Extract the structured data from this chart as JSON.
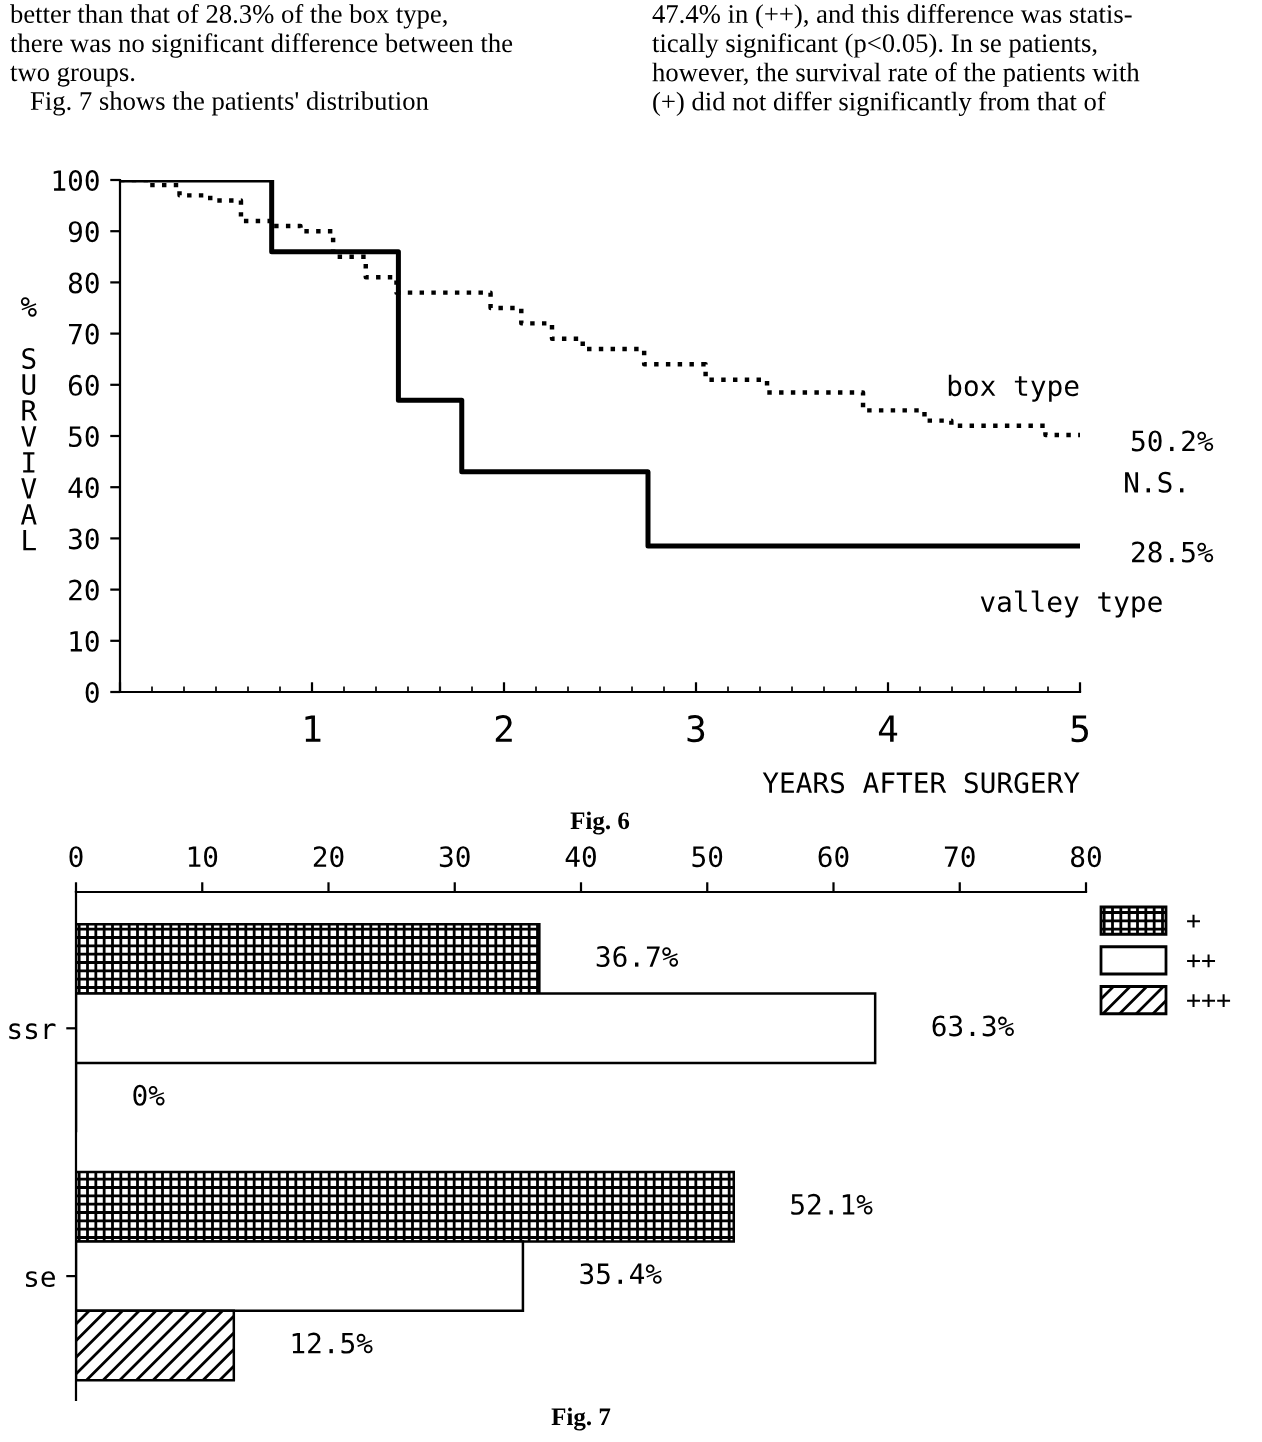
{
  "chart_data": [
    {
      "type": "step",
      "title": "Fig. 6",
      "xlabel": "YEARS AFTER SURGERY",
      "ylabel": "% SURVIVAL",
      "xlim": [
        0,
        5
      ],
      "xticks": [
        {
          "value": 0,
          "label": null
        },
        1,
        2,
        3,
        4,
        5
      ],
      "ylim": [
        0,
        100
      ],
      "yticks": [
        0,
        10,
        20,
        30,
        40,
        50,
        60,
        70,
        80,
        90,
        100
      ],
      "grid": false,
      "legend": false,
      "series": [
        {
          "name": "box type",
          "color": "#000000",
          "line_style": "dotted",
          "x": [
            0,
            0.15,
            0.31,
            0.47,
            0.63,
            0.79,
            0.94,
            1.11,
            1.28,
            1.44,
            1.93,
            2.09,
            2.25,
            2.41,
            2.73,
            3.05,
            3.37,
            3.87,
            4.19,
            4.33,
            4.82,
            5
          ],
          "values": [
            100,
            99,
            97,
            96,
            92,
            91,
            90,
            85,
            81,
            78,
            75,
            72,
            69,
            67,
            64,
            61,
            58.5,
            55,
            53,
            52,
            50.2,
            50.2
          ]
        },
        {
          "name": "valley type",
          "color": "#000000",
          "line_style": "solid",
          "x": [
            0,
            0.79,
            1.45,
            1.78,
            2.75,
            5
          ],
          "values": [
            100,
            86,
            57,
            43,
            28.5,
            28.5
          ]
        }
      ],
      "annotations": [
        "better than that of 28.3% of the box type,\nthere was no significant difference between the\ntwo groups.\n   Fig. 7 shows the patients' distribution",
        "47.4% in (++), and this difference was statis-\ntically significant (p<0.05). In se patients,\nhowever, the survival rate of the patients with\n(+) did not differ significantly from that of",
        "N.S.",
        {
          "text": "50.2%",
          "x": 5,
          "y": 50.2
        },
        {
          "text": "28.5%",
          "x": 5,
          "y": 28.5
        }
      ]
    },
    {
      "type": "bar",
      "orientation": "horizontal",
      "title": "Fig. 7",
      "categories": [
        "ssr",
        "se"
      ],
      "xlim": [
        0,
        80
      ],
      "xticks": [
        0,
        10,
        20,
        30,
        40,
        50,
        60,
        70,
        80
      ],
      "grid": false,
      "legend": "top right",
      "series": [
        {
          "name": "+",
          "color": "#000000",
          "values": [
            36.7,
            52.1
          ],
          "value_labels": [
            "36.7%",
            "52.1%"
          ]
        },
        {
          "name": "++",
          "color": "#ffffff",
          "values": [
            63.3,
            35.4
          ],
          "value_labels": [
            "63.3%",
            "35.4%"
          ]
        },
        {
          "name": "+++",
          "color": "#000000",
          "values": [
            0,
            12.5
          ],
          "value_labels": [
            "0%",
            "12.5%"
          ]
        }
      ]
    }
  ]
}
